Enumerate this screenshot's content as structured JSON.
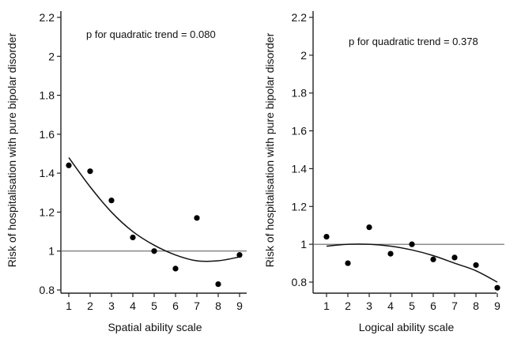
{
  "chart_data": [
    {
      "type": "scatter",
      "title": "",
      "xlabel": "Spatial ability scale",
      "ylabel": "Risk of hospitalisation with pure bipolar disorder",
      "annotation": "p for quadratic trend = 0.080",
      "xlim": [
        1,
        9
      ],
      "ylim": [
        0.8,
        2.2
      ],
      "x_ticks": [
        "1",
        "2",
        "3",
        "4",
        "5",
        "6",
        "7",
        "8",
        "9"
      ],
      "y_ticks": [
        "0.8",
        "1",
        "1.2",
        "1.4",
        "1.6",
        "1.8",
        "2",
        "2.2"
      ],
      "reference_line": 1.0,
      "points": {
        "x": [
          1,
          2,
          3,
          4,
          5,
          6,
          7,
          8,
          9
        ],
        "y": [
          1.44,
          1.41,
          1.26,
          1.07,
          1.0,
          0.91,
          1.17,
          0.83,
          0.98
        ]
      },
      "fit": {
        "type": "quadratic",
        "x": [
          1,
          2,
          3,
          4,
          5,
          6,
          7,
          8,
          9
        ],
        "y": [
          1.48,
          1.33,
          1.2,
          1.1,
          1.03,
          0.98,
          0.95,
          0.95,
          0.97
        ]
      }
    },
    {
      "type": "scatter",
      "title": "",
      "xlabel": "Logical ability scale",
      "ylabel": "Risk of hospitalisation with pure bipolar disorder",
      "annotation": "p for quadratic trend = 0.378",
      "xlim": [
        1,
        9
      ],
      "ylim": [
        0.8,
        2.2
      ],
      "x_ticks": [
        "1",
        "2",
        "3",
        "4",
        "5",
        "6",
        "7",
        "8",
        "9"
      ],
      "y_ticks": [
        "0.8",
        "1",
        "1.2",
        "1.4",
        "1.6",
        "1.8",
        "2",
        "2.2"
      ],
      "reference_line": 1.0,
      "points": {
        "x": [
          1,
          2,
          3,
          4,
          5,
          6,
          7,
          8,
          9
        ],
        "y": [
          1.04,
          0.9,
          1.09,
          0.95,
          1.0,
          0.92,
          0.93,
          0.89,
          0.77
        ]
      },
      "fit": {
        "type": "quadratic",
        "x": [
          1,
          2,
          3,
          4,
          5,
          6,
          7,
          8,
          9
        ],
        "y": [
          0.99,
          1.0,
          1.0,
          0.99,
          0.97,
          0.94,
          0.9,
          0.86,
          0.8
        ]
      }
    }
  ]
}
